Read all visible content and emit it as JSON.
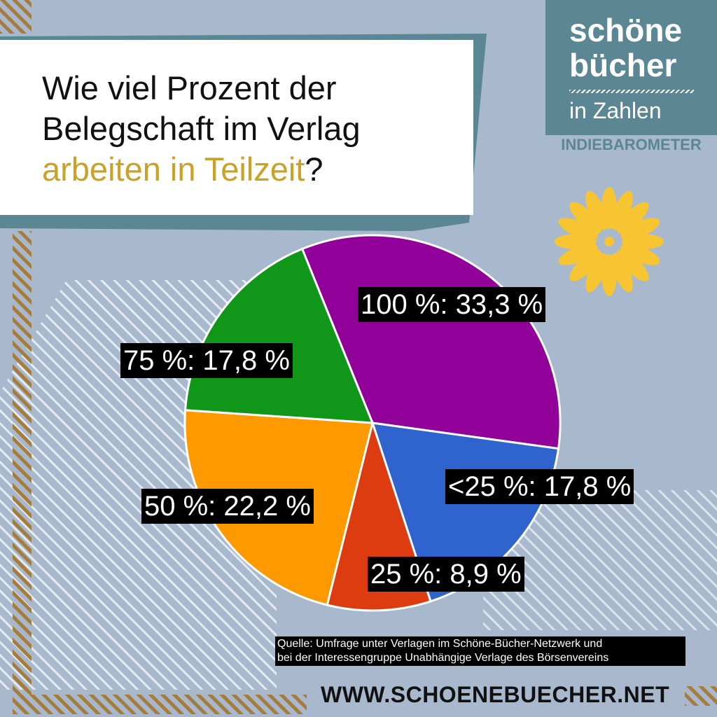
{
  "title": {
    "line1": "Wie viel Prozent der",
    "line2": "Belegschaft im Verlag",
    "line3_highlight": "arbeiten in Teilzeit",
    "line3_end": "?"
  },
  "brand": {
    "line1": "schöne",
    "line2": "bücher",
    "line3": "in Zahlen",
    "barometer": "INDIEBAROMETER"
  },
  "colors": {
    "background": "#a8b9cd",
    "teal": "#5a8793",
    "highlight": "#c9a227",
    "stripes": "#a67c3c",
    "flower": "#f7c531"
  },
  "chart_data": {
    "type": "pie",
    "title": "Wie viel Prozent der Belegschaft im Verlag arbeiten in Teilzeit?",
    "unit": "%",
    "slices": [
      {
        "category": "100 %",
        "value": 33.3,
        "label": "100 %: 33,3 %",
        "color": "#92009a"
      },
      {
        "category": "<25 %",
        "value": 17.8,
        "label": "<25 %: 17,8 %",
        "color": "#2f63cd"
      },
      {
        "category": "25 %",
        "value": 8.9,
        "label": "25 %: 8,9 %",
        "color": "#dd3c10"
      },
      {
        "category": "50 %",
        "value": 22.2,
        "label": "50 %: 22,2 %",
        "color": "#fe9900"
      },
      {
        "category": "75 %",
        "value": 17.8,
        "label": "75 %: 17,8 %",
        "color": "#109618"
      }
    ],
    "legend": "none"
  },
  "source": {
    "line1": "Quelle: Umfrage unter Verlagen im Schöne-Bücher-Netzwerk und",
    "line2": "bei der Interessengruppe Unabhängige Verlage des Börsenvereins"
  },
  "url": "WWW.SCHOENEBUECHER.NET"
}
